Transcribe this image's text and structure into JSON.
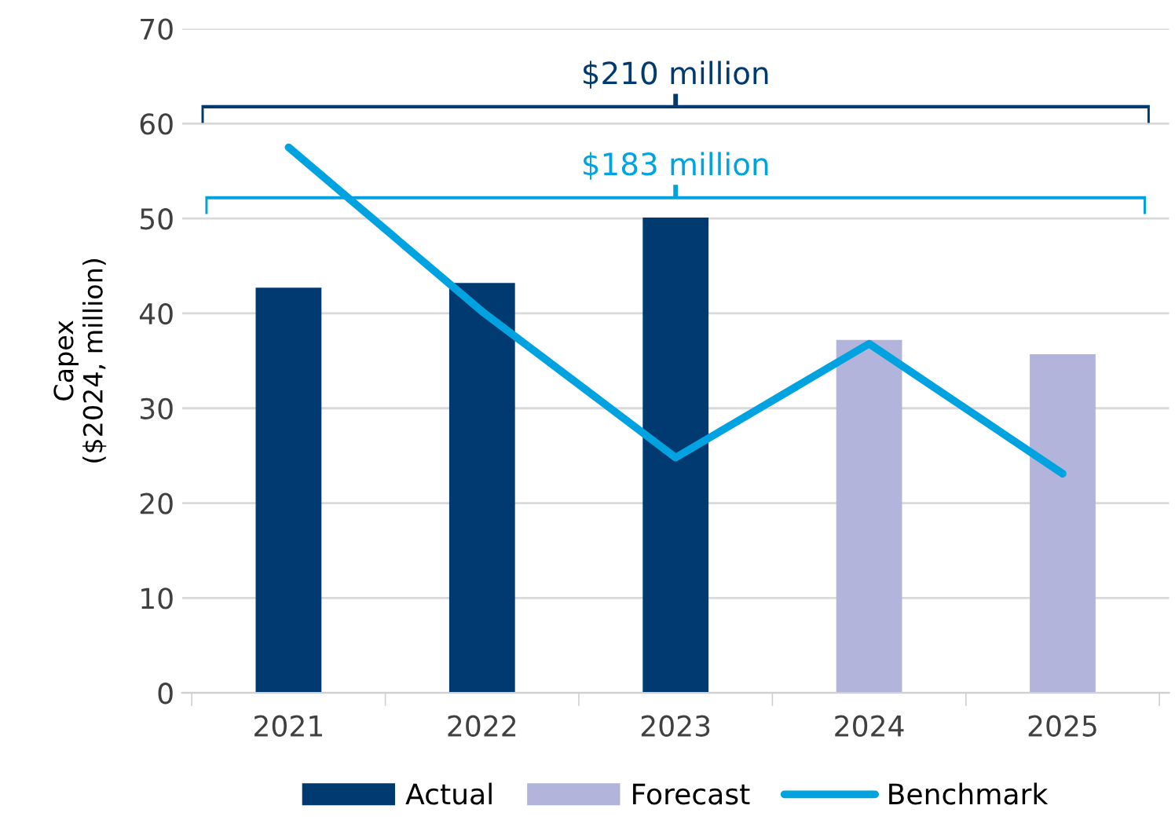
{
  "chart_data": {
    "type": "bar",
    "categories": [
      "2021",
      "2022",
      "2023",
      "2024",
      "2025"
    ],
    "series": [
      {
        "name": "Actual",
        "color": "#003a70",
        "values": [
          42.7,
          43.2,
          50.1,
          null,
          null
        ]
      },
      {
        "name": "Forecast",
        "color": "#b3b4dc",
        "values": [
          null,
          null,
          null,
          37.2,
          35.7
        ]
      },
      {
        "name": "Benchmark",
        "type": "line",
        "color": "#00a3e0",
        "values": [
          57.5,
          40.2,
          24.8,
          36.8,
          23.1
        ]
      }
    ],
    "ylabel": "Capex\n($2024, million)",
    "ylim": [
      0,
      70
    ],
    "yticks": [
      0,
      10,
      20,
      30,
      40,
      50,
      60,
      70
    ],
    "grid": "y",
    "legend": "bottom",
    "marker": "none",
    "line_style": "solid",
    "annotations": [
      "$210 million",
      "$183 million"
    ]
  }
}
